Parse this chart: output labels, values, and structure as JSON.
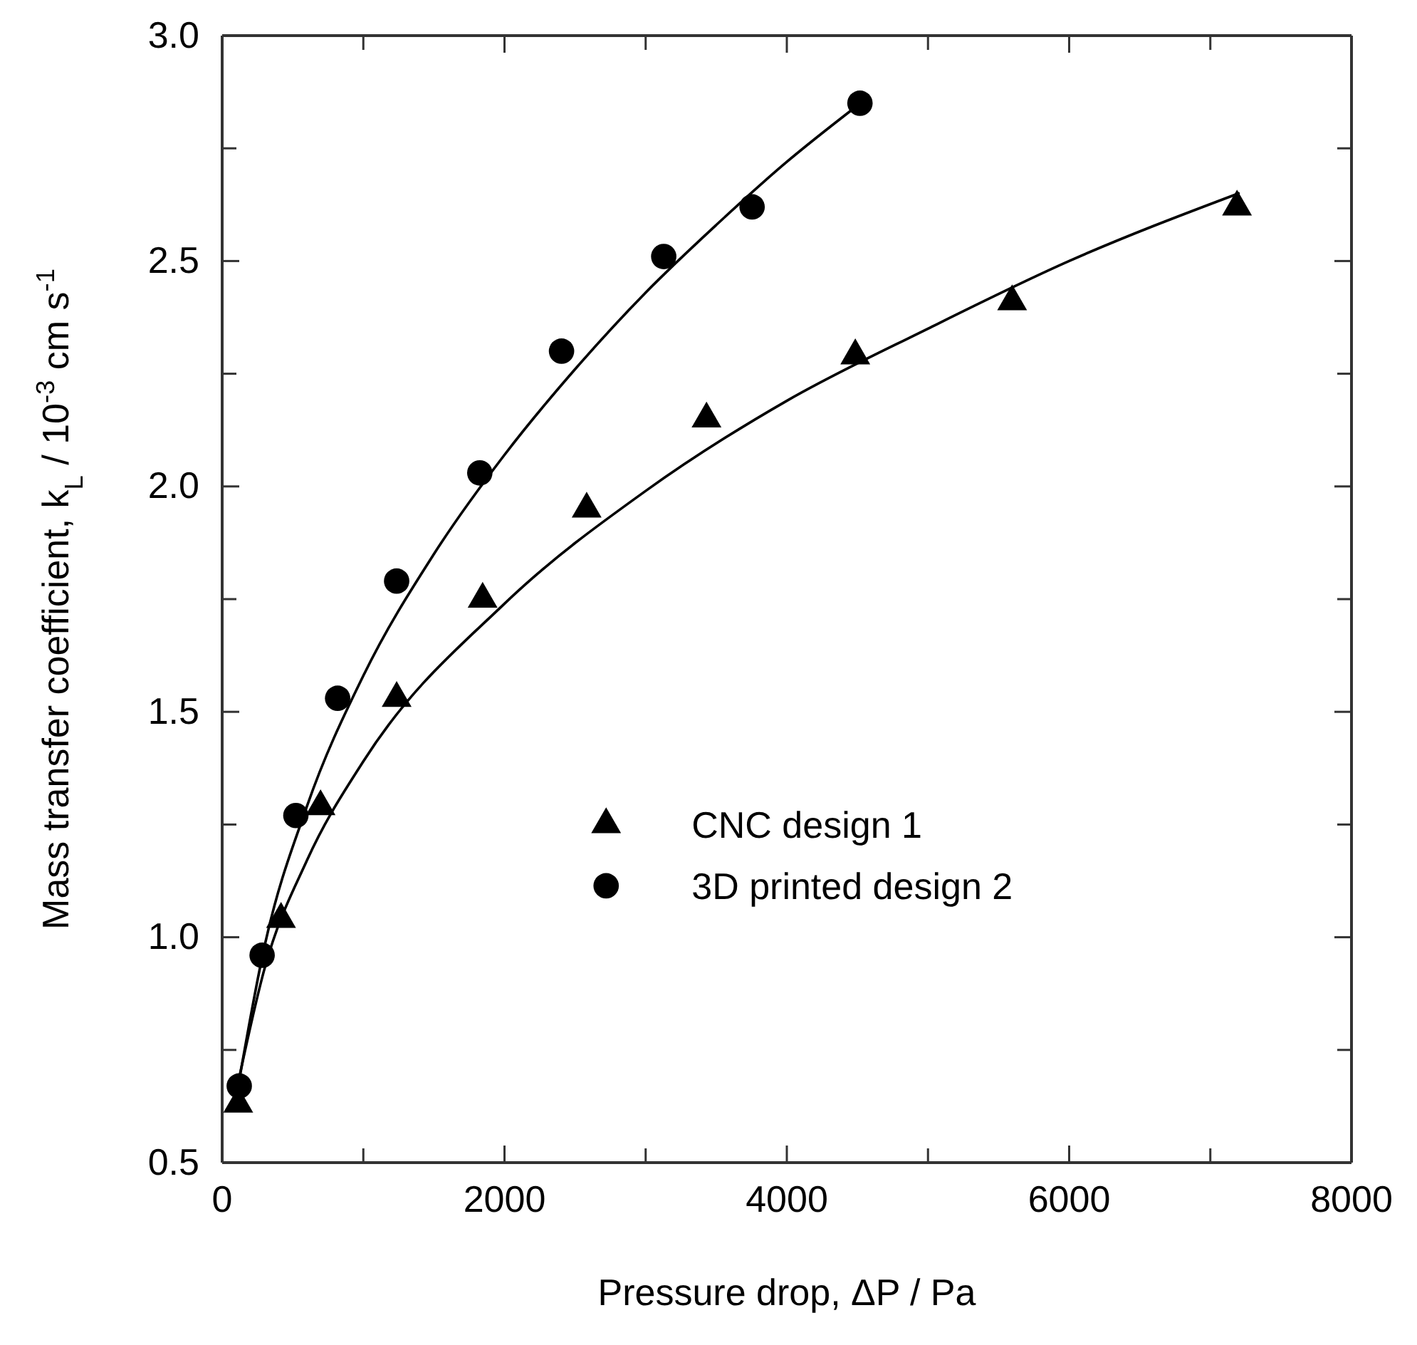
{
  "chart_data": {
    "type": "scatter",
    "xlabel": "Pressure drop, ΔP / Pa",
    "ylabel": "Mass transfer coefficient, k$_{L}$ / 10$^{-3}$ cm s$^{-1}$",
    "xlim": [
      0,
      8000
    ],
    "xticks": [
      0,
      {
        "value": 1000,
        "label": null
      },
      2000,
      {
        "value": 3000,
        "label": null
      },
      4000,
      {
        "value": 5000,
        "label": null
      },
      6000,
      {
        "value": 7000,
        "label": null
      },
      8000
    ],
    "ylim": [
      0.5,
      3.0
    ],
    "yticks": [
      {
        "value": 0.5,
        "label": "0.5"
      },
      {
        "value": 0.75,
        "label": null
      },
      {
        "value": 1.0,
        "label": "1.0"
      },
      {
        "value": 1.25,
        "label": null
      },
      {
        "value": 1.5,
        "label": "1.5"
      },
      {
        "value": 1.75,
        "label": null
      },
      {
        "value": 2.0,
        "label": "2.0"
      },
      {
        "value": 2.25,
        "label": null
      },
      {
        "value": 2.5,
        "label": "2.5"
      },
      {
        "value": 2.75,
        "label": null
      },
      {
        "value": 3.0,
        "label": "3.0"
      }
    ],
    "grid": false,
    "legend": "right",
    "series": [
      {
        "name": "CNC design 1",
        "color": "#000000",
        "marker": "triangle",
        "x": [
          114,
          417,
          697,
          1236,
          1845,
          2582,
          3431,
          4485,
          5596,
          7189
        ],
        "values": [
          0.63,
          1.04,
          1.29,
          1.53,
          1.75,
          1.95,
          2.15,
          2.29,
          2.41,
          2.62
        ]
      },
      {
        "name": "3D printed design 2",
        "color": "#000000",
        "marker": "circle",
        "x": [
          121,
          283,
          522,
          818,
          1236,
          1825,
          2404,
          3128,
          3754,
          4518
        ],
        "values": [
          0.67,
          0.96,
          1.27,
          1.53,
          1.79,
          2.03,
          2.3,
          2.51,
          2.62,
          2.85
        ]
      },
      {
        "type": "line",
        "color": "#000000",
        "marker": "none",
        "line_style": "solid",
        "x": [
          108,
          300,
          600,
          1000,
          2000,
          3000,
          4000,
          5000,
          6000,
          7200
        ],
        "values": [
          0.67,
          0.93,
          1.17,
          1.39,
          1.74,
          1.99,
          2.19,
          2.35,
          2.5,
          2.65
        ]
      },
      {
        "type": "line",
        "color": "#000000",
        "marker": "none",
        "line_style": "solid",
        "x": [
          108,
          300,
          600,
          1000,
          1500,
          2000,
          2500,
          3000,
          3500,
          4000,
          4480
        ],
        "values": [
          0.66,
          0.98,
          1.29,
          1.58,
          1.85,
          2.07,
          2.26,
          2.43,
          2.58,
          2.72,
          2.84
        ]
      }
    ]
  }
}
